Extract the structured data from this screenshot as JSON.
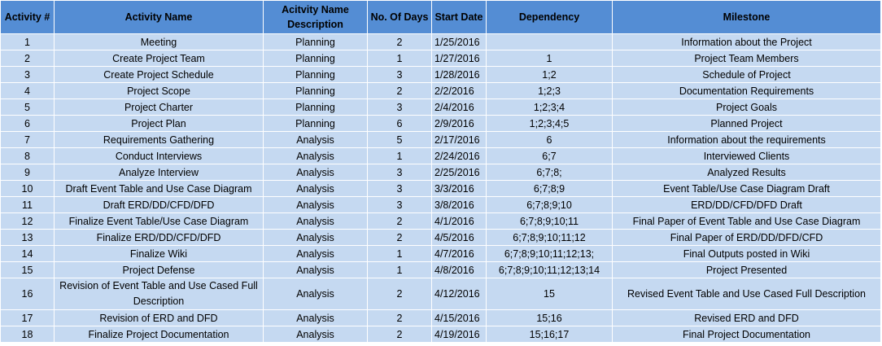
{
  "table": {
    "headers": [
      "Activity #",
      "Activity Name",
      "Acitvity Name Description",
      "No. Of Days",
      "Start Date",
      "Dependency",
      "Milestone"
    ],
    "rows": [
      [
        "1",
        "Meeting",
        "Planning",
        "2",
        "1/25/2016",
        "",
        "Information about the Project"
      ],
      [
        "2",
        "Create Project Team",
        "Planning",
        "1",
        "1/27/2016",
        "1",
        "Project Team Members"
      ],
      [
        "3",
        "Create Project Schedule",
        "Planning",
        "3",
        "1/28/2016",
        "1;2",
        "Schedule of Project"
      ],
      [
        "4",
        "Project Scope",
        "Planning",
        "2",
        "2/2/2016",
        "1;2;3",
        "Documentation Requirements"
      ],
      [
        "5",
        "Project Charter",
        "Planning",
        "3",
        "2/4/2016",
        "1;2;3;4",
        "Project Goals"
      ],
      [
        "6",
        "Project Plan",
        "Planning",
        "6",
        "2/9/2016",
        "1;2;3;4;5",
        "Planned Project"
      ],
      [
        "7",
        "Requirements Gathering",
        "Analysis",
        "5",
        "2/17/2016",
        "6",
        "Information about the requirements"
      ],
      [
        "8",
        "Conduct Interviews",
        "Analysis",
        "1",
        "2/24/2016",
        "6;7",
        "Interviewed Clients"
      ],
      [
        "9",
        "Analyze Interview",
        "Analysis",
        "3",
        "2/25/2016",
        "6;7;8;",
        "Analyzed Results"
      ],
      [
        "10",
        "Draft Event Table and Use Case Diagram",
        "Analysis",
        "3",
        "3/3/2016",
        "6;7;8;9",
        "Event Table/Use Case Diagram Draft"
      ],
      [
        "11",
        "Draft ERD/DD/CFD/DFD",
        "Analysis",
        "3",
        "3/8/2016",
        "6;7;8;9;10",
        "ERD/DD/CFD/DFD Draft"
      ],
      [
        "12",
        "Finalize Event Table/Use Case Diagram",
        "Analysis",
        "2",
        "4/1/2016",
        "6;7;8;9;10;11",
        "Final Paper of Event Table and Use Case Diagram"
      ],
      [
        "13",
        "Finalize ERD/DD/CFD/DFD",
        "Analysis",
        "2",
        "4/5/2016",
        "6;7;8;9;10;11;12",
        "Final Paper of ERD/DD/DFD/CFD"
      ],
      [
        "14",
        "Finalize Wiki",
        "Analysis",
        "1",
        "4/7/2016",
        "6;7;8;9;10;11;12;13;",
        "Final Outputs posted in Wiki"
      ],
      [
        "15",
        "Project Defense",
        "Analysis",
        "1",
        "4/8/2016",
        "6;7;8;9;10;11;12;13;14",
        "Project Presented"
      ],
      [
        "16",
        "Revision of Event Table and Use Cased Full Description",
        "Analysis",
        "2",
        "4/12/2016",
        "15",
        "Revised Event Table and Use Cased Full Description"
      ],
      [
        "17",
        "Revision of ERD and DFD",
        "Analysis",
        "2",
        "4/15/2016",
        "15;16",
        "Revised ERD and DFD"
      ],
      [
        "18",
        "Finalize Project Documentation",
        "Analysis",
        "2",
        "4/19/2016",
        "15;16;17",
        "Final Project Documentation"
      ]
    ]
  }
}
